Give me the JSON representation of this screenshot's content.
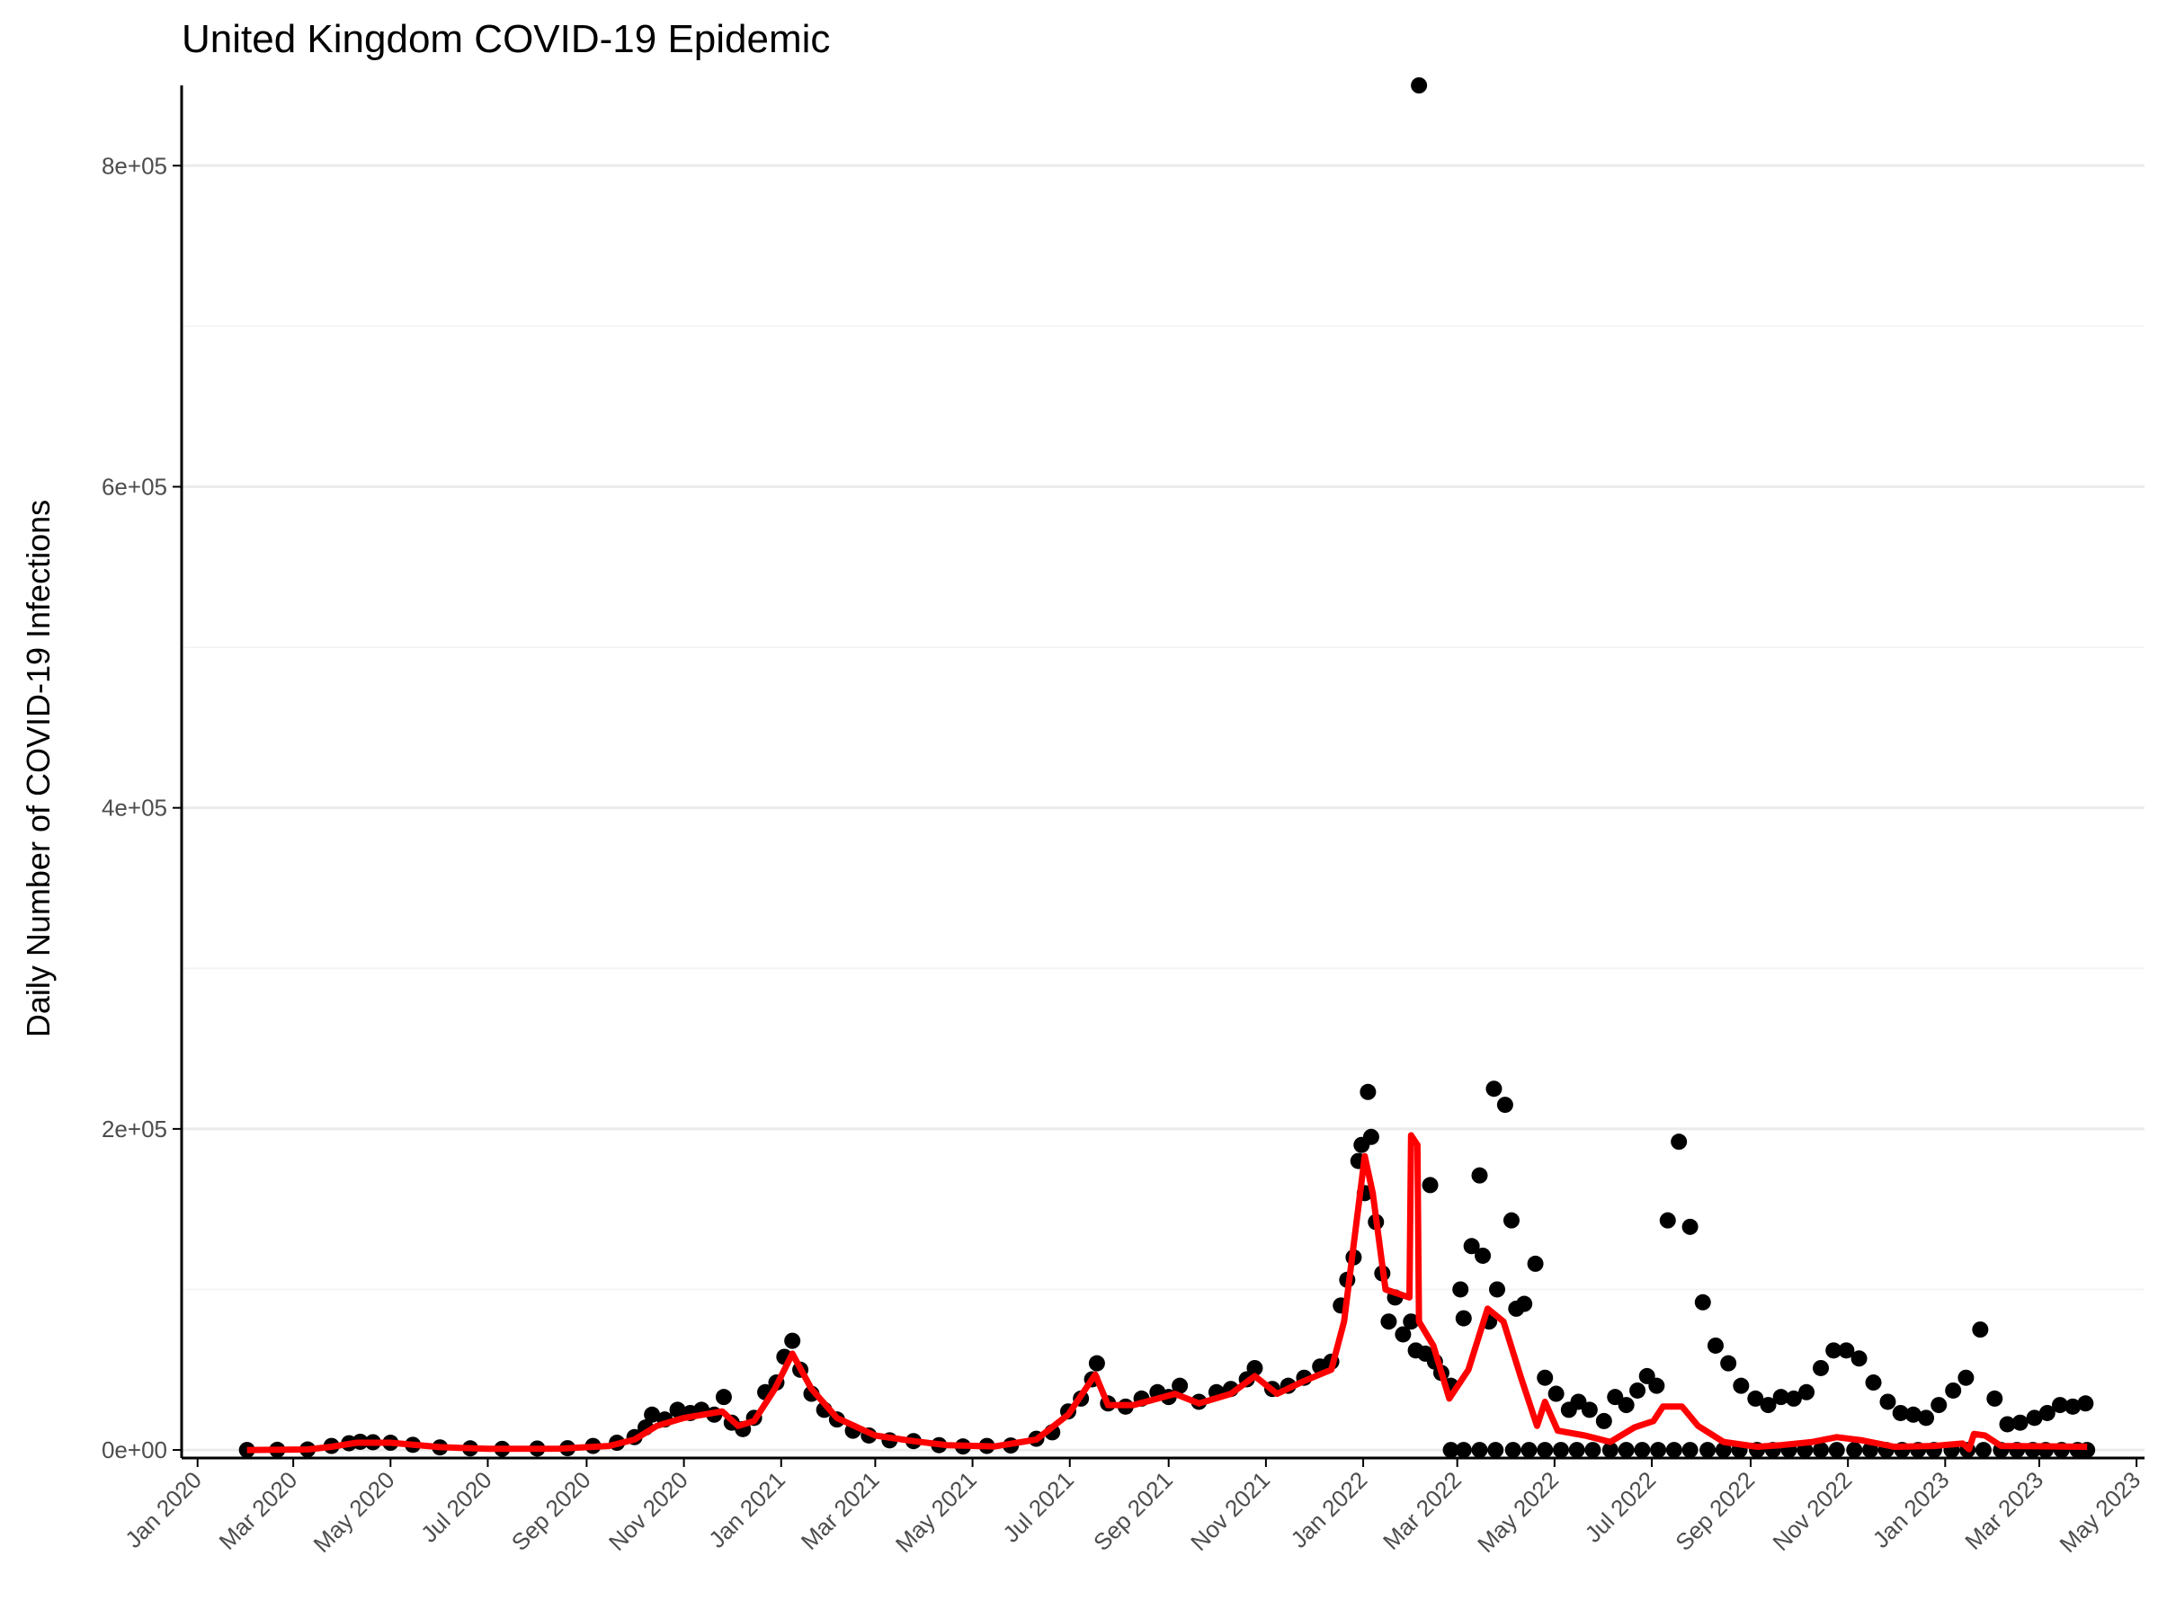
{
  "colors": {
    "points": "#000000",
    "line": "#ff0000",
    "grid_major": "#ebebeb",
    "grid_minor": "#f4f4f4",
    "axis": "#000000",
    "tick_text": "#4d4d4d"
  },
  "chart_data": {
    "type": "scatter",
    "title": "United Kingdom COVID-19 Epidemic",
    "xlabel": "",
    "ylabel": "Daily Number of COVID-19 Infections",
    "xlim": [
      "2019-12-22",
      "2023-05-06"
    ],
    "ylim": [
      -5000,
      850000
    ],
    "grid": true,
    "legend": "none",
    "y_ticks": [
      {
        "value": 0,
        "label": "0e+00"
      },
      {
        "value": 200000,
        "label": "2e+05"
      },
      {
        "value": 400000,
        "label": "4e+05"
      },
      {
        "value": 600000,
        "label": "6e+05"
      },
      {
        "value": 800000,
        "label": "8e+05"
      }
    ],
    "y_minor": [
      100000,
      300000,
      500000,
      700000
    ],
    "x_ticks": [
      {
        "value": "2020-01-01",
        "label": "Jan 2020"
      },
      {
        "value": "2020-03-01",
        "label": "Mar 2020"
      },
      {
        "value": "2020-05-01",
        "label": "May 2020"
      },
      {
        "value": "2020-07-01",
        "label": "Jul 2020"
      },
      {
        "value": "2020-09-01",
        "label": "Sep 2020"
      },
      {
        "value": "2020-11-01",
        "label": "Nov 2020"
      },
      {
        "value": "2021-01-01",
        "label": "Jan 2021"
      },
      {
        "value": "2021-03-01",
        "label": "Mar 2021"
      },
      {
        "value": "2021-05-01",
        "label": "May 2021"
      },
      {
        "value": "2021-07-01",
        "label": "Jul 2021"
      },
      {
        "value": "2021-09-01",
        "label": "Sep 2021"
      },
      {
        "value": "2021-11-01",
        "label": "Nov 2021"
      },
      {
        "value": "2022-01-01",
        "label": "Jan 2022"
      },
      {
        "value": "2022-03-01",
        "label": "Mar 2022"
      },
      {
        "value": "2022-05-01",
        "label": "May 2022"
      },
      {
        "value": "2022-07-01",
        "label": "Jul 2022"
      },
      {
        "value": "2022-09-01",
        "label": "Sep 2022"
      },
      {
        "value": "2022-11-01",
        "label": "Nov 2022"
      },
      {
        "value": "2023-01-01",
        "label": "Jan 2023"
      },
      {
        "value": "2023-03-01",
        "label": "Mar 2023"
      },
      {
        "value": "2023-05-01",
        "label": "May 2023"
      }
    ],
    "points": [
      [
        "2020-02-01",
        0
      ],
      [
        "2020-02-20",
        100
      ],
      [
        "2020-03-10",
        300
      ],
      [
        "2020-03-25",
        2500
      ],
      [
        "2020-04-05",
        4200
      ],
      [
        "2020-04-12",
        5100
      ],
      [
        "2020-04-20",
        4800
      ],
      [
        "2020-05-01",
        4500
      ],
      [
        "2020-05-15",
        3200
      ],
      [
        "2020-06-01",
        1600
      ],
      [
        "2020-06-20",
        1000
      ],
      [
        "2020-07-10",
        700
      ],
      [
        "2020-08-01",
        900
      ],
      [
        "2020-08-20",
        1100
      ],
      [
        "2020-09-05",
        2500
      ],
      [
        "2020-09-20",
        4500
      ],
      [
        "2020-10-01",
        8000
      ],
      [
        "2020-10-08",
        14000
      ],
      [
        "2020-10-12",
        22000
      ],
      [
        "2020-10-20",
        19000
      ],
      [
        "2020-10-28",
        25000
      ],
      [
        "2020-11-05",
        23000
      ],
      [
        "2020-11-12",
        25000
      ],
      [
        "2020-11-20",
        22000
      ],
      [
        "2020-11-26",
        33000
      ],
      [
        "2020-12-01",
        17000
      ],
      [
        "2020-12-08",
        13000
      ],
      [
        "2020-12-15",
        20000
      ],
      [
        "2020-12-22",
        36000
      ],
      [
        "2020-12-29",
        42000
      ],
      [
        "2021-01-03",
        58000
      ],
      [
        "2021-01-08",
        68000
      ],
      [
        "2021-01-13",
        50000
      ],
      [
        "2021-01-20",
        35000
      ],
      [
        "2021-01-28",
        25000
      ],
      [
        "2021-02-05",
        19000
      ],
      [
        "2021-02-15",
        12000
      ],
      [
        "2021-02-25",
        9000
      ],
      [
        "2021-03-10",
        6000
      ],
      [
        "2021-03-25",
        5500
      ],
      [
        "2021-04-10",
        3000
      ],
      [
        "2021-04-25",
        2200
      ],
      [
        "2021-05-10",
        2500
      ],
      [
        "2021-05-25",
        2800
      ],
      [
        "2021-06-10",
        7000
      ],
      [
        "2021-06-20",
        11000
      ],
      [
        "2021-06-30",
        24000
      ],
      [
        "2021-07-08",
        32000
      ],
      [
        "2021-07-15",
        44000
      ],
      [
        "2021-07-18",
        54000
      ],
      [
        "2021-07-25",
        29000
      ],
      [
        "2021-08-05",
        27000
      ],
      [
        "2021-08-15",
        32000
      ],
      [
        "2021-08-25",
        36000
      ],
      [
        "2021-09-01",
        33000
      ],
      [
        "2021-09-08",
        40000
      ],
      [
        "2021-09-20",
        30000
      ],
      [
        "2021-10-01",
        36000
      ],
      [
        "2021-10-10",
        38000
      ],
      [
        "2021-10-20",
        44000
      ],
      [
        "2021-10-25",
        51000
      ],
      [
        "2021-11-05",
        38000
      ],
      [
        "2021-11-15",
        40000
      ],
      [
        "2021-11-25",
        45000
      ],
      [
        "2021-12-05",
        52000
      ],
      [
        "2021-12-12",
        55000
      ],
      [
        "2021-12-18",
        90000
      ],
      [
        "2021-12-22",
        106000
      ],
      [
        "2021-12-26",
        120000
      ],
      [
        "2021-12-29",
        180000
      ],
      [
        "2021-12-31",
        190000
      ],
      [
        "2022-01-02",
        160000
      ],
      [
        "2022-01-04",
        223000
      ],
      [
        "2022-01-06",
        195000
      ],
      [
        "2022-01-09",
        142000
      ],
      [
        "2022-01-13",
        110000
      ],
      [
        "2022-01-17",
        80000
      ],
      [
        "2022-01-21",
        95000
      ],
      [
        "2022-01-26",
        72000
      ],
      [
        "2022-01-31",
        80000
      ],
      [
        "2022-02-03",
        62000
      ],
      [
        "2022-02-05",
        850000
      ],
      [
        "2022-02-09",
        60000
      ],
      [
        "2022-02-12",
        165000
      ],
      [
        "2022-02-15",
        55000
      ],
      [
        "2022-02-19",
        48000
      ],
      [
        "2022-02-25",
        40000
      ],
      [
        "2022-03-03",
        100000
      ],
      [
        "2022-03-05",
        82000
      ],
      [
        "2022-03-10",
        127000
      ],
      [
        "2022-03-15",
        171000
      ],
      [
        "2022-03-17",
        121000
      ],
      [
        "2022-03-21",
        80000
      ],
      [
        "2022-03-24",
        225000
      ],
      [
        "2022-03-26",
        100000
      ],
      [
        "2022-03-31",
        215000
      ],
      [
        "2022-04-04",
        143000
      ],
      [
        "2022-04-07",
        88000
      ],
      [
        "2022-04-12",
        91000
      ],
      [
        "2022-04-19",
        116000
      ],
      [
        "2022-04-25",
        45000
      ],
      [
        "2022-05-02",
        35000
      ],
      [
        "2022-05-10",
        25000
      ],
      [
        "2022-05-16",
        30000
      ],
      [
        "2022-05-23",
        25000
      ],
      [
        "2022-06-01",
        18000
      ],
      [
        "2022-06-08",
        33000
      ],
      [
        "2022-06-15",
        28000
      ],
      [
        "2022-06-22",
        37000
      ],
      [
        "2022-06-28",
        46000
      ],
      [
        "2022-07-04",
        40000
      ],
      [
        "2022-07-11",
        143000
      ],
      [
        "2022-07-18",
        192000
      ],
      [
        "2022-07-25",
        139000
      ],
      [
        "2022-08-02",
        92000
      ],
      [
        "2022-08-10",
        65000
      ],
      [
        "2022-08-18",
        54000
      ],
      [
        "2022-08-26",
        40000
      ],
      [
        "2022-09-04",
        32000
      ],
      [
        "2022-09-12",
        28000
      ],
      [
        "2022-09-20",
        33000
      ],
      [
        "2022-09-28",
        32000
      ],
      [
        "2022-10-06",
        36000
      ],
      [
        "2022-10-15",
        51000
      ],
      [
        "2022-10-23",
        62000
      ],
      [
        "2022-10-31",
        62000
      ],
      [
        "2022-11-08",
        57000
      ],
      [
        "2022-11-17",
        42000
      ],
      [
        "2022-11-26",
        30000
      ],
      [
        "2022-12-04",
        23000
      ],
      [
        "2022-12-12",
        22000
      ],
      [
        "2022-12-20",
        20000
      ],
      [
        "2022-12-28",
        28000
      ],
      [
        "2023-01-06",
        37000
      ],
      [
        "2023-01-14",
        45000
      ],
      [
        "2023-01-23",
        75000
      ],
      [
        "2023-02-01",
        32000
      ],
      [
        "2023-02-09",
        16000
      ],
      [
        "2023-02-17",
        17000
      ],
      [
        "2023-02-26",
        20000
      ],
      [
        "2023-03-06",
        23000
      ],
      [
        "2023-03-14",
        28000
      ],
      [
        "2023-03-22",
        27000
      ],
      [
        "2023-03-30",
        29000
      ],
      [
        "2022-02-25",
        0
      ],
      [
        "2022-03-05",
        0
      ],
      [
        "2022-03-15",
        0
      ],
      [
        "2022-03-25",
        0
      ],
      [
        "2022-04-05",
        0
      ],
      [
        "2022-04-15",
        0
      ],
      [
        "2022-04-25",
        0
      ],
      [
        "2022-05-05",
        0
      ],
      [
        "2022-05-15",
        0
      ],
      [
        "2022-05-25",
        0
      ],
      [
        "2022-06-05",
        0
      ],
      [
        "2022-06-15",
        0
      ],
      [
        "2022-06-25",
        0
      ],
      [
        "2022-07-05",
        0
      ],
      [
        "2022-07-15",
        0
      ],
      [
        "2022-07-25",
        0
      ],
      [
        "2022-08-05",
        0
      ],
      [
        "2022-08-15",
        0
      ],
      [
        "2022-08-25",
        0
      ],
      [
        "2022-09-05",
        0
      ],
      [
        "2022-09-15",
        0
      ],
      [
        "2022-09-25",
        0
      ],
      [
        "2022-10-05",
        0
      ],
      [
        "2022-10-15",
        0
      ],
      [
        "2022-10-25",
        0
      ],
      [
        "2022-11-05",
        0
      ],
      [
        "2022-11-15",
        0
      ],
      [
        "2022-11-25",
        0
      ],
      [
        "2022-12-05",
        0
      ],
      [
        "2022-12-15",
        0
      ],
      [
        "2022-12-25",
        0
      ],
      [
        "2023-01-05",
        0
      ],
      [
        "2023-01-15",
        0
      ],
      [
        "2023-01-25",
        0
      ],
      [
        "2023-02-05",
        0
      ],
      [
        "2023-02-15",
        0
      ],
      [
        "2023-02-25",
        0
      ],
      [
        "2023-03-05",
        0
      ],
      [
        "2023-03-15",
        0
      ],
      [
        "2023-03-25",
        0
      ],
      [
        "2023-03-31",
        0
      ]
    ],
    "line": [
      [
        "2020-02-01",
        0
      ],
      [
        "2020-03-10",
        300
      ],
      [
        "2020-03-25",
        2000
      ],
      [
        "2020-04-10",
        4500
      ],
      [
        "2020-05-01",
        4500
      ],
      [
        "2020-06-01",
        1800
      ],
      [
        "2020-07-01",
        700
      ],
      [
        "2020-08-15",
        800
      ],
      [
        "2020-09-15",
        2500
      ],
      [
        "2020-10-01",
        6500
      ],
      [
        "2020-10-15",
        15000
      ],
      [
        "2020-11-01",
        20000
      ],
      [
        "2020-11-25",
        24000
      ],
      [
        "2020-12-05",
        15000
      ],
      [
        "2020-12-15",
        18000
      ],
      [
        "2020-12-28",
        38000
      ],
      [
        "2021-01-08",
        60000
      ],
      [
        "2021-01-20",
        38000
      ],
      [
        "2021-02-05",
        20000
      ],
      [
        "2021-03-01",
        9000
      ],
      [
        "2021-03-25",
        5500
      ],
      [
        "2021-04-15",
        3000
      ],
      [
        "2021-05-15",
        2200
      ],
      [
        "2021-06-10",
        6500
      ],
      [
        "2021-06-30",
        22000
      ],
      [
        "2021-07-17",
        47000
      ],
      [
        "2021-07-25",
        28000
      ],
      [
        "2021-08-10",
        28000
      ],
      [
        "2021-09-05",
        35000
      ],
      [
        "2021-09-20",
        29000
      ],
      [
        "2021-10-10",
        35000
      ],
      [
        "2021-10-25",
        46000
      ],
      [
        "2021-11-08",
        35000
      ],
      [
        "2021-11-25",
        43000
      ],
      [
        "2021-12-12",
        50000
      ],
      [
        "2021-12-20",
        80000
      ],
      [
        "2022-01-02",
        183000
      ],
      [
        "2022-01-07",
        160000
      ],
      [
        "2022-01-15",
        100000
      ],
      [
        "2022-01-30",
        95000
      ],
      [
        "2022-01-31",
        196000
      ],
      [
        "2022-02-04",
        190000
      ],
      [
        "2022-02-05",
        80000
      ],
      [
        "2022-02-14",
        65000
      ],
      [
        "2022-02-24",
        32000
      ],
      [
        "2022-03-08",
        50000
      ],
      [
        "2022-03-20",
        88000
      ],
      [
        "2022-03-30",
        80000
      ],
      [
        "2022-04-10",
        45000
      ],
      [
        "2022-04-20",
        15000
      ],
      [
        "2022-04-25",
        30000
      ],
      [
        "2022-05-03",
        12000
      ],
      [
        "2022-05-20",
        9000
      ],
      [
        "2022-06-05",
        5000
      ],
      [
        "2022-06-20",
        14000
      ],
      [
        "2022-07-02",
        18000
      ],
      [
        "2022-07-08",
        27000
      ],
      [
        "2022-07-20",
        27000
      ],
      [
        "2022-07-30",
        15000
      ],
      [
        "2022-08-15",
        5000
      ],
      [
        "2022-09-05",
        2000
      ],
      [
        "2022-09-20",
        3000
      ],
      [
        "2022-10-10",
        5000
      ],
      [
        "2022-10-25",
        8000
      ],
      [
        "2022-11-10",
        6000
      ],
      [
        "2022-11-30",
        2000
      ],
      [
        "2022-12-25",
        2500
      ],
      [
        "2023-01-12",
        4000
      ],
      [
        "2023-01-16",
        500
      ],
      [
        "2023-01-19",
        10000
      ],
      [
        "2023-01-26",
        9000
      ],
      [
        "2023-02-05",
        2500
      ],
      [
        "2023-03-31",
        2000
      ]
    ]
  }
}
